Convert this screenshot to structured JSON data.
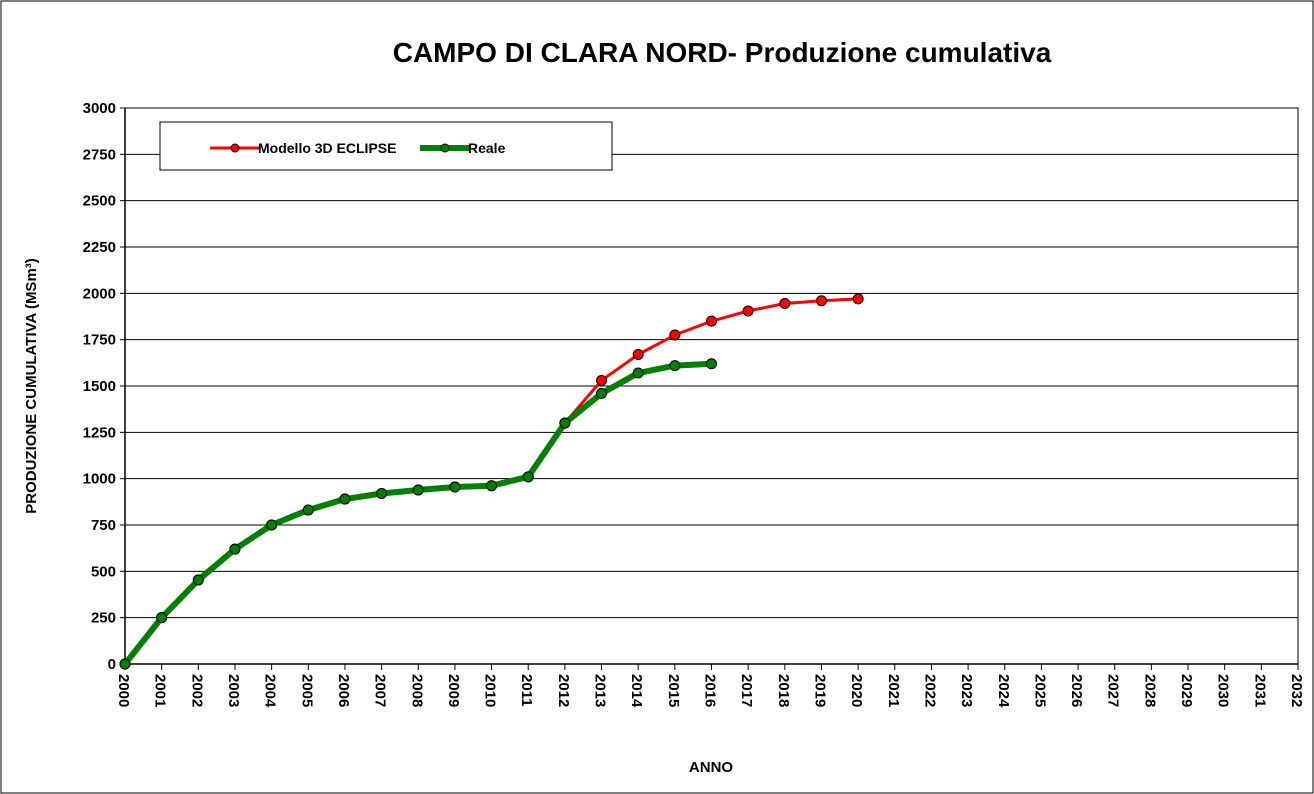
{
  "chart_data": {
    "type": "line",
    "title": "CAMPO DI CLARA NORD- Produzione cumulativa",
    "x_label": "ANNO",
    "y_label": "PRODUZIONE CUMULATIVA (MSm³)",
    "x": [
      2000,
      2001,
      2002,
      2003,
      2004,
      2005,
      2006,
      2007,
      2008,
      2009,
      2010,
      2011,
      2012,
      2013,
      2014,
      2015,
      2016,
      2017,
      2018,
      2019,
      2020
    ],
    "series": [
      {
        "name": "Modello 3D ECLIPSE",
        "color": "#ff0000",
        "width": 3,
        "values": [
          0,
          250,
          453,
          620,
          750,
          831,
          890,
          920,
          939,
          955,
          962,
          1010,
          1300,
          1530,
          1670,
          1775,
          1850,
          1905,
          1945,
          1960,
          1970
        ]
      },
      {
        "name": "Reale",
        "color": "#008000",
        "width": 6,
        "values": [
          0,
          250,
          453,
          620,
          750,
          831,
          890,
          920,
          939,
          955,
          962,
          1010,
          1300,
          1460,
          1570,
          1610,
          1620,
          null,
          null,
          null,
          null
        ]
      }
    ],
    "xlim": [
      2000,
      2032
    ],
    "xticks": [
      2000,
      2001,
      2002,
      2003,
      2004,
      2005,
      2006,
      2007,
      2008,
      2009,
      2010,
      2011,
      2012,
      2013,
      2014,
      2015,
      2016,
      2017,
      2018,
      2019,
      2020,
      2021,
      2022,
      2023,
      2024,
      2025,
      2026,
      2027,
      2028,
      2029,
      2030,
      2031,
      2032
    ],
    "ylim": [
      0,
      3000
    ],
    "yticks": [
      0,
      250,
      500,
      750,
      1000,
      1250,
      1500,
      1750,
      2000,
      2250,
      2500,
      2750,
      3000
    ],
    "grid": true,
    "legend": "top-left"
  }
}
